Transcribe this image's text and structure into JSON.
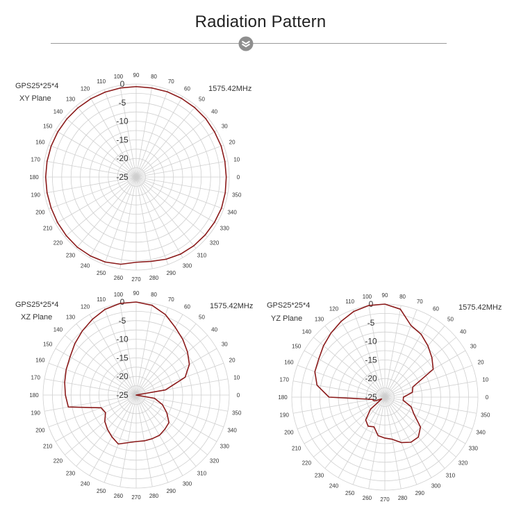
{
  "header": {
    "title": "Radiation Pattern"
  },
  "chart_data": [
    {
      "type": "polar-line",
      "name_label": "GPS25*25*4",
      "plane_label": "XY Plane",
      "frequency": "1575.42MHz",
      "angle_tick_labels": [
        "0",
        "10",
        "20",
        "30",
        "40",
        "50",
        "60",
        "70",
        "80",
        "90",
        "100",
        "110",
        "120",
        "130",
        "140",
        "150",
        "160",
        "170",
        "180",
        "190",
        "200",
        "210",
        "220",
        "230",
        "240",
        "250",
        "260",
        "270",
        "280",
        "290",
        "300",
        "310",
        "320",
        "330",
        "340",
        "350"
      ],
      "radial_tick_labels": [
        "0",
        "-5",
        "-10",
        "-15",
        "-20",
        "-25"
      ],
      "rlim": [
        -25,
        0
      ],
      "series_color": "#8b1a1a",
      "angles": [
        0,
        10,
        20,
        30,
        40,
        50,
        60,
        70,
        80,
        90,
        100,
        110,
        120,
        130,
        140,
        150,
        160,
        170,
        180,
        190,
        200,
        210,
        220,
        230,
        240,
        250,
        260,
        270,
        280,
        290,
        300,
        310,
        320,
        330,
        340,
        350
      ],
      "values": [
        -0.8,
        -0.8,
        -0.7,
        -0.7,
        -0.6,
        -0.6,
        -0.6,
        -0.6,
        -0.7,
        -0.7,
        -0.7,
        -0.7,
        -0.7,
        -0.7,
        -0.7,
        -0.7,
        -0.7,
        -0.7,
        -0.7,
        -0.7,
        -0.7,
        -0.6,
        -0.5,
        -0.4,
        -0.5,
        -0.7,
        -1.2,
        -2.1,
        -2.0,
        -1.5,
        -1.1,
        -0.9,
        -0.8,
        -0.7,
        -0.6,
        -0.7
      ]
    },
    {
      "type": "polar-line",
      "name_label": "GPS25*25*4",
      "plane_label": "XZ Plane",
      "frequency": "1575.42MHz",
      "angle_tick_labels": [
        "0",
        "10",
        "20",
        "30",
        "40",
        "50",
        "60",
        "70",
        "80",
        "90",
        "100",
        "110",
        "120",
        "130",
        "140",
        "150",
        "160",
        "170",
        "180",
        "190",
        "200",
        "210",
        "220",
        "230",
        "240",
        "250",
        "260",
        "270",
        "280",
        "290",
        "300",
        "310",
        "320",
        "330",
        "340",
        "350"
      ],
      "radial_tick_labels": [
        "0",
        "-5",
        "-10",
        "-15",
        "-20",
        "-25"
      ],
      "rlim": [
        -25,
        0
      ],
      "series_color": "#8b1a1a",
      "angles": [
        0,
        10,
        20,
        30,
        40,
        50,
        60,
        70,
        80,
        90,
        100,
        110,
        120,
        130,
        140,
        150,
        160,
        170,
        180,
        190,
        200,
        210,
        220,
        230,
        240,
        250,
        260,
        270,
        280,
        290,
        300,
        310,
        320,
        330,
        340,
        350
      ],
      "values": [
        -25.0,
        -17.0,
        -11.0,
        -8.5,
        -7.0,
        -5.5,
        -4.0,
        -2.0,
        -0.5,
        0.0,
        0.0,
        -0.5,
        -1.5,
        -2.5,
        -3.5,
        -4.5,
        -5.0,
        -5.5,
        -6.0,
        -6.5,
        -15.0,
        -15.5,
        -14.0,
        -13.0,
        -12.0,
        -11.0,
        -12.0,
        -12.5,
        -12.5,
        -12.5,
        -12.5,
        -13.0,
        -13.5,
        -15.5,
        -17.5,
        -20.0
      ]
    },
    {
      "type": "polar-line",
      "name_label": "GPS25*25*4",
      "plane_label": "YZ Plane",
      "frequency": "1575.42MHz",
      "angle_tick_labels": [
        "0",
        "10",
        "20",
        "30",
        "40",
        "50",
        "60",
        "70",
        "80",
        "90",
        "100",
        "110",
        "120",
        "130",
        "140",
        "150",
        "160",
        "170",
        "180",
        "190",
        "200",
        "210",
        "220",
        "230",
        "240",
        "250",
        "260",
        "270",
        "280",
        "290",
        "300",
        "310",
        "320",
        "330",
        "340",
        "350"
      ],
      "radial_tick_labels": [
        "0",
        "-5",
        "-10",
        "-15",
        "-20",
        "-25"
      ],
      "rlim": [
        -25,
        0
      ],
      "series_color": "#8b1a1a",
      "angles": [
        0,
        10,
        20,
        30,
        40,
        50,
        60,
        70,
        80,
        90,
        100,
        110,
        120,
        130,
        140,
        150,
        160,
        170,
        180,
        190,
        200,
        210,
        220,
        230,
        240,
        250,
        260,
        270,
        280,
        290,
        300,
        310,
        320,
        330,
        340,
        350
      ],
      "values": [
        -20.0,
        -17.5,
        -17.0,
        -10.0,
        -8.5,
        -7.0,
        -5.5,
        -4.5,
        -1.0,
        0.0,
        0.0,
        -0.5,
        -1.5,
        -2.5,
        -3.5,
        -4.5,
        -5.0,
        -6.5,
        -10.0,
        -21.5,
        -22.0,
        -24.0,
        -20.0,
        -17.0,
        -16.0,
        -16.5,
        -14.5,
        -14.0,
        -13.5,
        -12.0,
        -11.0,
        -11.0,
        -12.5,
        -16.0,
        -17.5,
        -20.0
      ]
    }
  ]
}
